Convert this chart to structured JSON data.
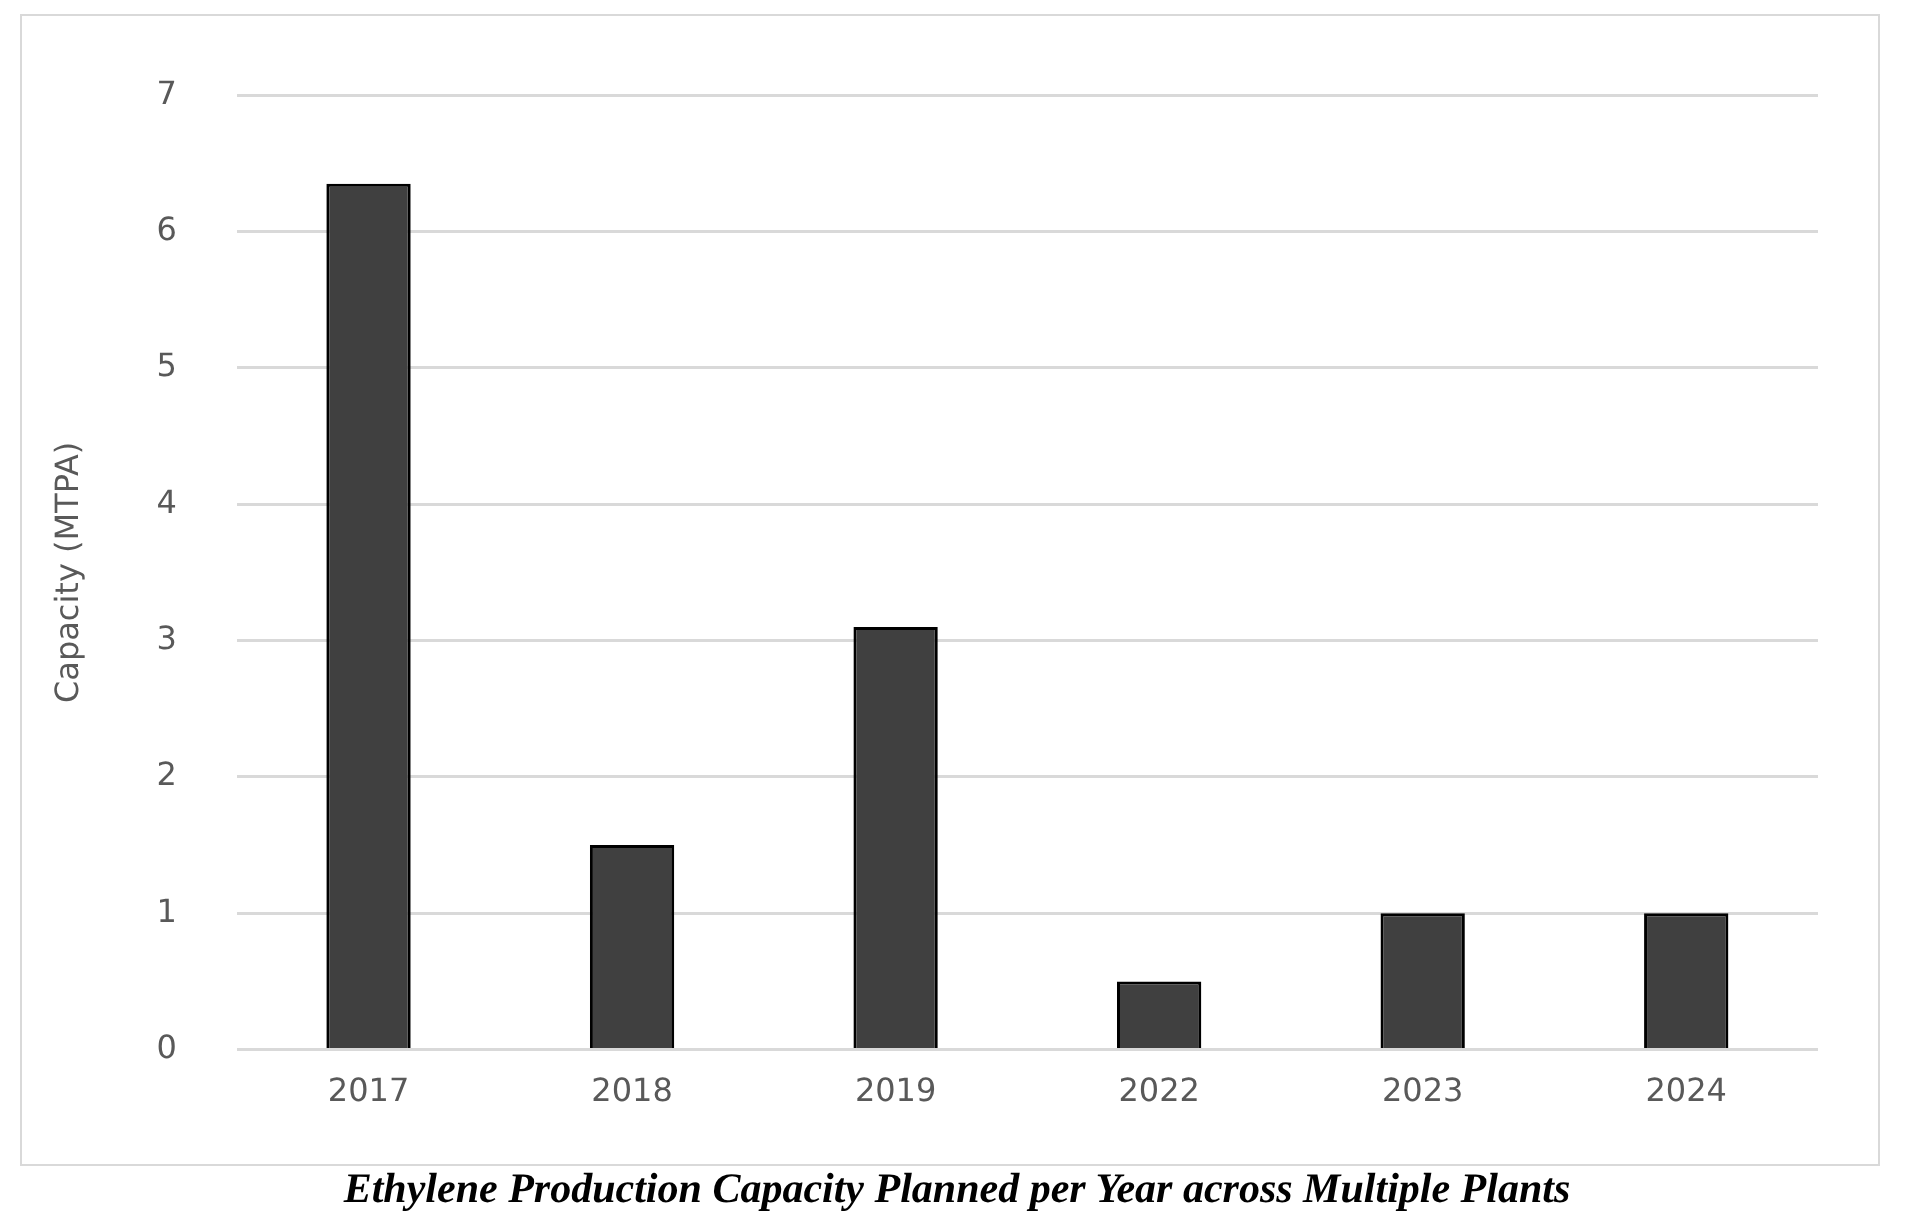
{
  "chart_data": {
    "type": "bar",
    "title": "Ethylene Production Capacity Planned per Year across Multiple Plants",
    "ylabel": "Capacity (MTPA)",
    "categories": [
      "2017",
      "2018",
      "2019",
      "2022",
      "2023",
      "2024"
    ],
    "values": [
      6.35,
      1.5,
      3.1,
      0.5,
      1,
      1
    ],
    "color": "#404040",
    "ylim": [
      0,
      7
    ],
    "yticks": [
      0,
      1,
      2,
      3,
      4,
      5,
      6,
      7
    ],
    "grid": "y"
  }
}
